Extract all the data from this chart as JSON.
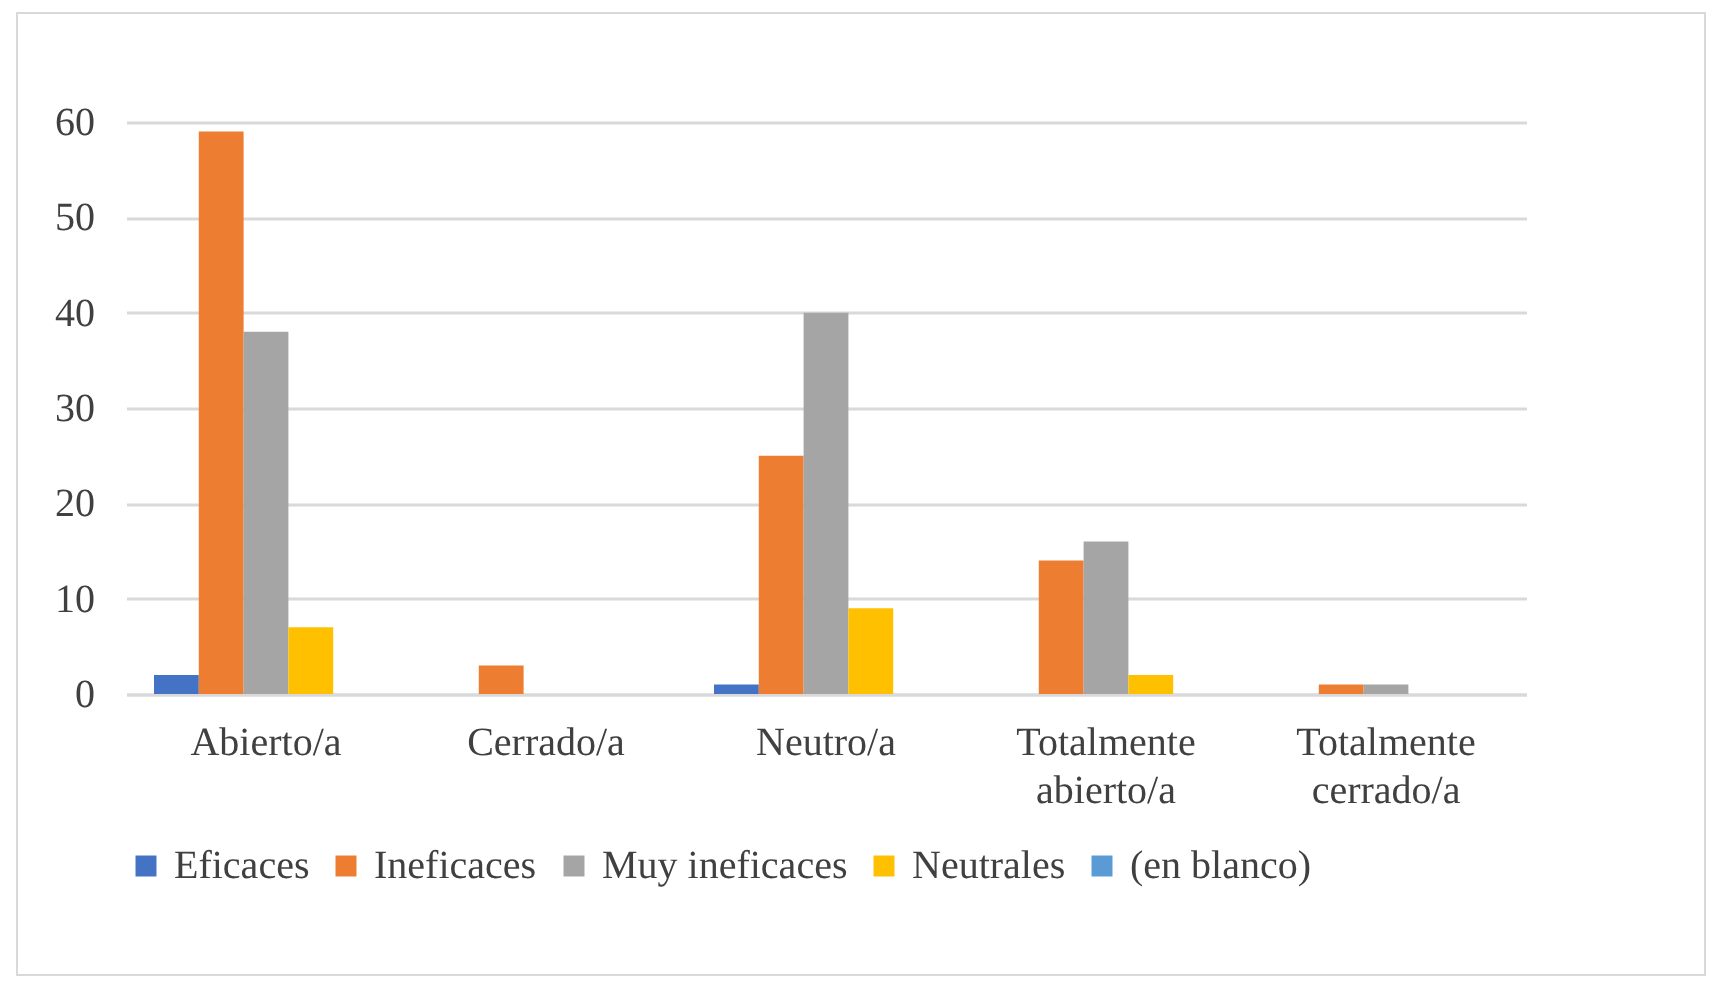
{
  "chart_data": {
    "type": "bar",
    "categories": [
      "Abierto/a",
      "Cerrado/a",
      "Neutro/a",
      "Totalmente abierto/a",
      "Totalmente cerrado/a"
    ],
    "series": [
      {
        "name": "Eficaces",
        "color": "#4472c4",
        "values": [
          2,
          null,
          1,
          null,
          null
        ]
      },
      {
        "name": "Ineficaces",
        "color": "#ed7d31",
        "values": [
          59,
          3,
          25,
          14,
          1
        ]
      },
      {
        "name": "Muy ineficaces",
        "color": "#a5a5a5",
        "values": [
          38,
          null,
          40,
          16,
          1
        ]
      },
      {
        "name": "Neutrales",
        "color": "#ffc000",
        "values": [
          7,
          null,
          9,
          2,
          null
        ]
      },
      {
        "name": "(en blanco)",
        "color": "#5b9bd5",
        "values": [
          null,
          null,
          null,
          null,
          null
        ]
      }
    ],
    "ylim": [
      0,
      60
    ],
    "yticks": [
      0,
      10,
      20,
      30,
      40,
      50,
      60
    ],
    "grid": "y",
    "legend": "bottom"
  }
}
